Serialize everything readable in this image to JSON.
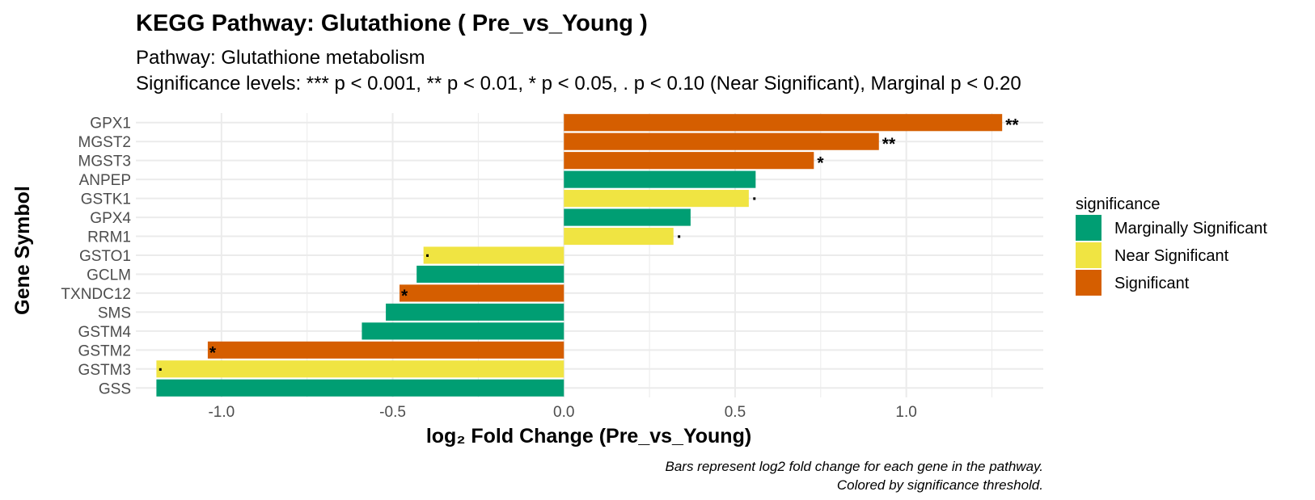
{
  "chart_data": {
    "type": "bar",
    "orientation": "horizontal",
    "title": "KEGG Pathway: Glutathione ( Pre_vs_Young )",
    "subtitle_lines": [
      "Pathway: Glutathione metabolism",
      "Significance levels: *** p < 0.001, ** p < 0.01, * p < 0.05, . p < 0.10 (Near Significant), Marginal p < 0.20"
    ],
    "xlabel": "log₂ Fold Change (Pre_vs_Young)",
    "ylabel": "Gene Symbol",
    "caption_lines": [
      "Bars represent log2 fold change for each gene in the pathway.",
      "Colored by significance threshold."
    ],
    "xlim": [
      -1.25,
      1.4
    ],
    "x_ticks": [
      -1.0,
      -0.5,
      0.0,
      0.5,
      1.0
    ],
    "x_tick_labels": [
      "-1.0",
      "-0.5",
      "0.0",
      "0.5",
      "1.0"
    ],
    "grid": true,
    "legend": {
      "title": "significance",
      "position": "right",
      "entries": [
        {
          "label": "Marginally Significant",
          "color": "#009E73"
        },
        {
          "label": "Near Significant",
          "color": "#F0E442"
        },
        {
          "label": "Significant",
          "color": "#D55E00"
        }
      ]
    },
    "categories": [
      "GPX1",
      "MGST2",
      "MGST3",
      "ANPEP",
      "GSTK1",
      "GPX4",
      "RRM1",
      "GSTO1",
      "GCLM",
      "TXNDC12",
      "SMS",
      "GSTM4",
      "GSTM2",
      "GSTM3",
      "GSS"
    ],
    "values": [
      1.28,
      0.92,
      0.73,
      0.56,
      0.54,
      0.37,
      0.32,
      -0.41,
      -0.43,
      -0.48,
      -0.52,
      -0.59,
      -1.04,
      -1.19,
      -1.19
    ],
    "significance": [
      "Significant",
      "Significant",
      "Significant",
      "Marginally Significant",
      "Near Significant",
      "Marginally Significant",
      "Near Significant",
      "Near Significant",
      "Marginally Significant",
      "Significant",
      "Marginally Significant",
      "Marginally Significant",
      "Significant",
      "Near Significant",
      "Marginally Significant"
    ],
    "labels": [
      "**",
      "**",
      "*",
      "",
      ".",
      "",
      ".",
      ".",
      "",
      "*",
      "",
      "",
      "*",
      ".",
      ""
    ]
  }
}
